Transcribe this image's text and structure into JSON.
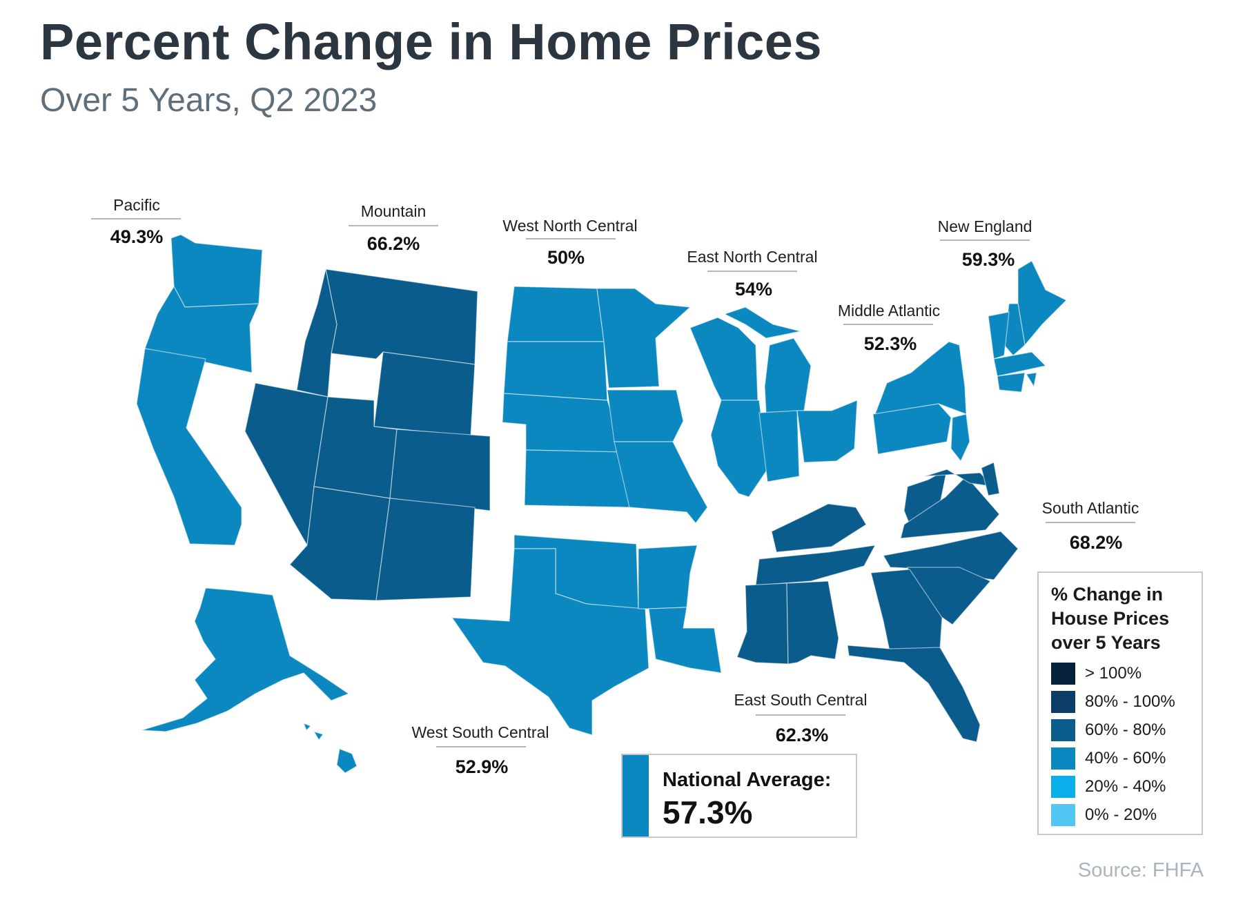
{
  "header": {
    "title": "Percent Change in Home Prices",
    "subtitle": "Over 5 Years, Q2 2023"
  },
  "colors": {
    "over_100": "#06213a",
    "80_100": "#0c3d66",
    "60_80": "#0a5c8c",
    "40_60": "#0b88bf",
    "20_40": "#0aaee8",
    "0_20": "#4fc7f2",
    "map_outline": "#ffffff"
  },
  "regions": [
    {
      "id": "pacific",
      "name": "Pacific",
      "value": "49.3%",
      "bucket": "40_60"
    },
    {
      "id": "mountain",
      "name": "Mountain",
      "value": "66.2%",
      "bucket": "60_80"
    },
    {
      "id": "west-north-central",
      "name": "West North Central",
      "value": "50%",
      "bucket": "40_60"
    },
    {
      "id": "east-north-central",
      "name": "East North Central",
      "value": "54%",
      "bucket": "40_60"
    },
    {
      "id": "middle-atlantic",
      "name": "Middle Atlantic",
      "value": "52.3%",
      "bucket": "40_60"
    },
    {
      "id": "new-england",
      "name": "New England",
      "value": "59.3%",
      "bucket": "40_60"
    },
    {
      "id": "south-atlantic",
      "name": "South Atlantic",
      "value": "68.2%",
      "bucket": "60_80"
    },
    {
      "id": "east-south-central",
      "name": "East South Central",
      "value": "62.3%",
      "bucket": "60_80"
    },
    {
      "id": "west-south-central",
      "name": "West South Central",
      "value": "52.9%",
      "bucket": "40_60"
    }
  ],
  "legend": {
    "title": "% Change in House Prices over 5 Years",
    "items": [
      {
        "label": "> 100%",
        "bucket": "over_100"
      },
      {
        "label": "80% - 100%",
        "bucket": "80_100"
      },
      {
        "label": "60% - 80%",
        "bucket": "60_80"
      },
      {
        "label": "40% - 60%",
        "bucket": "40_60"
      },
      {
        "label": "20% - 40%",
        "bucket": "20_40"
      },
      {
        "label": "0% - 20%",
        "bucket": "0_20"
      }
    ]
  },
  "national": {
    "label": "National Average:",
    "value": "57.3%"
  },
  "source": "Source: FHFA"
}
